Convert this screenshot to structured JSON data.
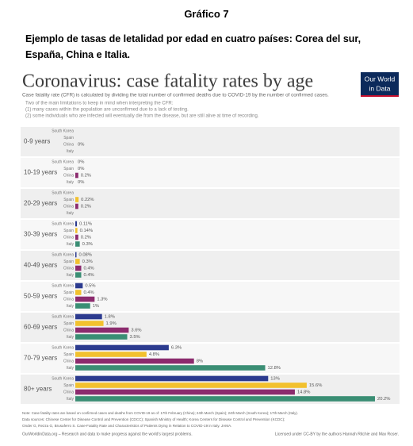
{
  "document": {
    "figure_label": "Gráfico 7",
    "caption": [
      "Ejemplo de tasas de letalidad por edad en cuatro países: Corea del sur,",
      "España, China e Italia."
    ]
  },
  "chart_data": {
    "type": "bar",
    "orientation": "horizontal",
    "title": "Coronavirus: case fatality rates by age",
    "subtitle": [
      "Case fatality rate (CFR) is calculated by dividing the total number of confirmed deaths due to COVID-19 by the number of confirmed cases.",
      "Two of the main limitations to keep in mind when interpreting the CFR:",
      "(1) many cases within the population are unconfirmed due to a lack of testing.",
      "(2) some individuals who are infected will eventually die from the disease, but are still alive at time of recording."
    ],
    "logo": [
      "Our World",
      "in Data"
    ],
    "categories": [
      "0-9 years",
      "10-19 years",
      "20-29 years",
      "30-39 years",
      "40-49 years",
      "50-59 years",
      "60-69 years",
      "70-79 years",
      "80+ years"
    ],
    "series": [
      {
        "name": "South Korea",
        "color": "#2c3b8f",
        "values": [
          null,
          0,
          null,
          0.11,
          0.08,
          0.5,
          1.8,
          6.3,
          13
        ],
        "value_labels": [
          null,
          "0%",
          null,
          "0.11%",
          "0.08%",
          "0.5%",
          "1.8%",
          "6.3%",
          "13%"
        ]
      },
      {
        "name": "Spain",
        "color": "#f2c12e",
        "values": [
          null,
          0,
          0.22,
          0.14,
          0.3,
          0.4,
          1.9,
          4.8,
          15.6
        ],
        "value_labels": [
          null,
          "0%",
          "0.22%",
          "0.14%",
          "0.3%",
          "0.4%",
          "1.9%",
          "4.8%",
          "15.6%"
        ]
      },
      {
        "name": "China",
        "color": "#8c2b6e",
        "values": [
          0,
          0.2,
          0.2,
          0.2,
          0.4,
          1.3,
          3.6,
          8,
          14.8
        ],
        "value_labels": [
          "0%",
          "0.2%",
          "0.2%",
          "0.2%",
          "0.4%",
          "1.3%",
          "3.6%",
          "8%",
          "14.8%"
        ]
      },
      {
        "name": "Italy",
        "color": "#3a8e74",
        "values": [
          null,
          0,
          null,
          0.3,
          0.4,
          1,
          3.5,
          12.8,
          20.2
        ],
        "value_labels": [
          null,
          "0%",
          null,
          "0.3%",
          "0.4%",
          "1%",
          "3.5%",
          "12.8%",
          "20.2%"
        ]
      }
    ],
    "notes": [
      "Note: Case fatality rates are based on confirmed cases and deaths from COVID-19 as of: 17th February (China); 24th March (Spain); 24th March (South Korea); 17th March (Italy).",
      "Data sources: Chinese Center for Disease Control and Prevention (CDCC); Spanish Ministry of Health; Korea Centers for Disease Control and Prevention (KCDC);",
      "Onder G, Rezza G, Brusaferro S. Case-Fatality Rate and Characteristics of Patients Dying in Relation to COVID-19 in Italy. JAMA."
    ],
    "footer_left": "OurWorldinData.org – Research and data to make progress against the world's largest problems.",
    "footer_right": "Licensed under CC-BY by the authors Hannah Ritchie and Max Roser."
  }
}
